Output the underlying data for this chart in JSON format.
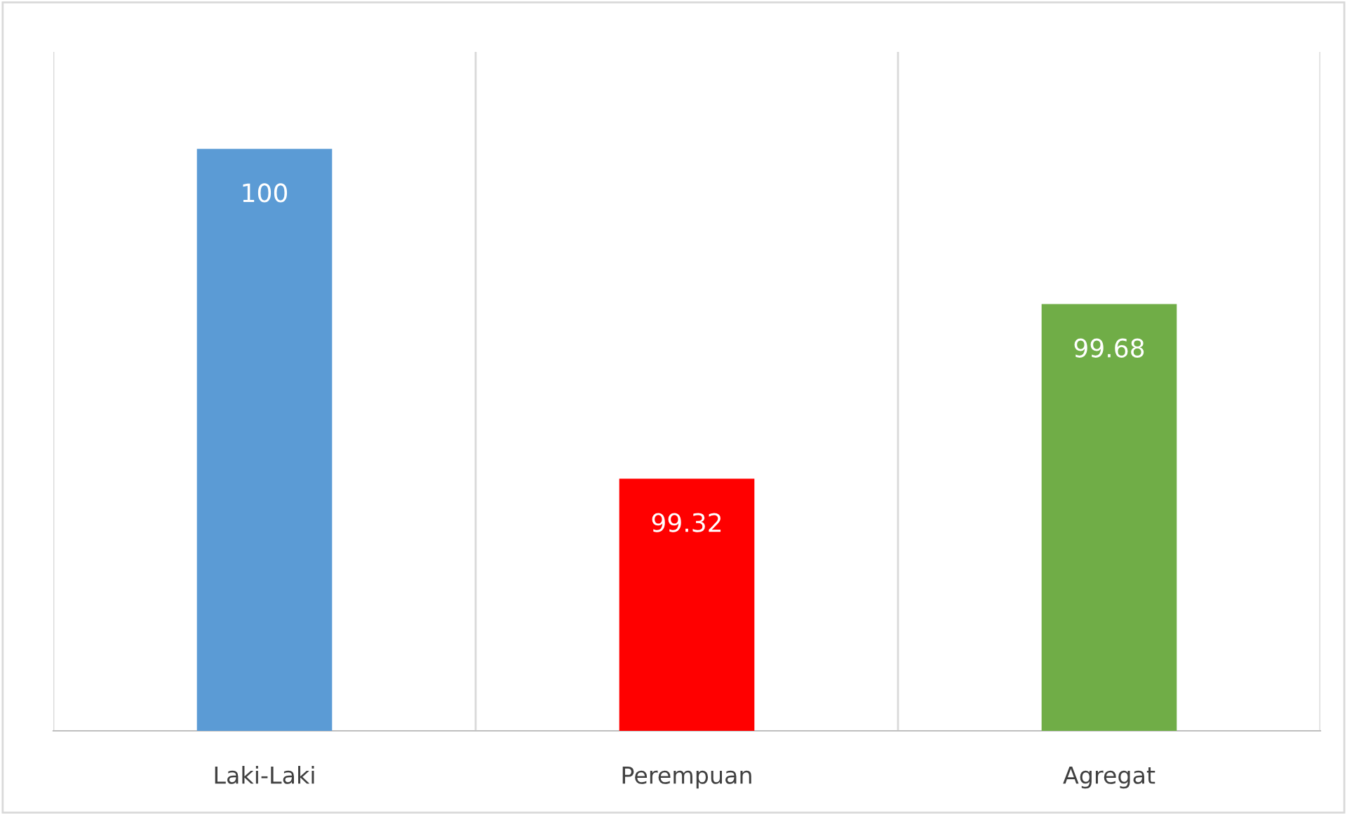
{
  "chart_data": {
    "type": "bar",
    "categories": [
      "Laki-Laki",
      "Perempuan",
      "Agregat"
    ],
    "values": [
      100,
      99.32,
      99.68
    ],
    "colors": [
      "#5b9bd5",
      "#ff0000",
      "#70ad47"
    ],
    "ylim": [
      98.8,
      100.2
    ],
    "data_labels": true,
    "grid": "x",
    "legend": false
  }
}
